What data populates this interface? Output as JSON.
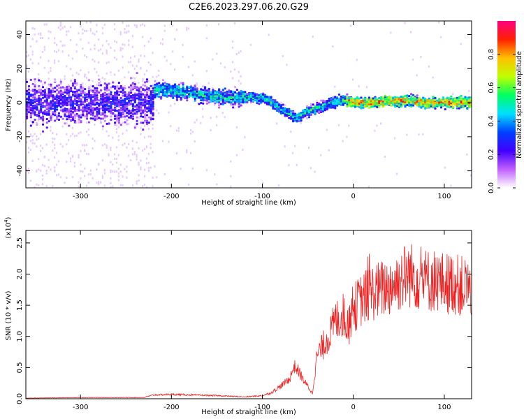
{
  "figure_title": "C2E6.2023.297.06.20.G29",
  "chart_data": [
    {
      "type": "heatmap",
      "title": "C2E6.2023.297.06.20.G29",
      "xlabel": "Height of straight line (km)",
      "ylabel": "Frequency (Hz)",
      "xlim": [
        -360,
        130
      ],
      "ylim": [
        -50,
        48
      ],
      "xticks": [
        -300,
        -200,
        -100,
        0,
        100
      ],
      "yticks": [
        -40,
        -20,
        0,
        20,
        40
      ],
      "grid": false,
      "colorbar": {
        "label": "Normalized spectral amplitude",
        "range": [
          0.0,
          1.0
        ],
        "ticks": [
          0.0,
          0.2,
          0.4,
          0.6,
          0.8
        ],
        "colors": [
          "#ffffff",
          "#c060ff",
          "#4000ff",
          "#0040ff",
          "#00e0ff",
          "#00ff60",
          "#c0ff00",
          "#ffc000",
          "#ff2000",
          "#ff0080"
        ]
      },
      "ridge": {
        "description_x": [
          -220,
          -200,
          -180,
          -160,
          -140,
          -120,
          -100,
          -90,
          -80,
          -70,
          -63,
          -55,
          -45,
          -35,
          -25,
          -15,
          -5,
          0,
          20,
          40,
          60,
          80,
          100,
          130
        ],
        "description_y": [
          8,
          7,
          6,
          4,
          3,
          3,
          3,
          0,
          -4,
          -7,
          -9,
          -6,
          -4,
          -2,
          0,
          1,
          1,
          0,
          0,
          1,
          1,
          0,
          0,
          0
        ]
      }
    },
    {
      "type": "line",
      "xlabel": "Height of straight line (km)",
      "ylabel": "SNR (10 * v/v)",
      "y_multiplier": "(x10^4)",
      "xlim": [
        -360,
        130
      ],
      "ylim": [
        0,
        2.7
      ],
      "xticks": [
        -300,
        -200,
        -100,
        0,
        100
      ],
      "yticks": [
        0.0,
        0.5,
        1.0,
        1.5,
        2.0,
        2.5
      ],
      "grid": false,
      "series": [
        {
          "color": "#ee2222",
          "x": [
            -360,
            -300,
            -230,
            -220,
            -200,
            -150,
            -120,
            -100,
            -90,
            -80,
            -70,
            -65,
            -60,
            -55,
            -50,
            -45,
            -40,
            -35,
            -30,
            -25,
            -20,
            -15,
            -10,
            -5,
            0,
            10,
            20,
            30,
            40,
            50,
            60,
            70,
            80,
            90,
            100,
            110,
            120,
            130
          ],
          "y": [
            0.01,
            0.02,
            0.02,
            0.06,
            0.07,
            0.05,
            0.03,
            0.05,
            0.1,
            0.2,
            0.32,
            0.52,
            0.44,
            0.3,
            0.2,
            0.08,
            0.7,
            0.8,
            0.95,
            1.05,
            1.25,
            1.3,
            1.35,
            1.15,
            1.45,
            1.6,
            1.7,
            1.75,
            1.8,
            1.9,
            2.0,
            1.95,
            1.9,
            1.9,
            1.85,
            1.85,
            1.8,
            1.78
          ]
        }
      ]
    }
  ]
}
